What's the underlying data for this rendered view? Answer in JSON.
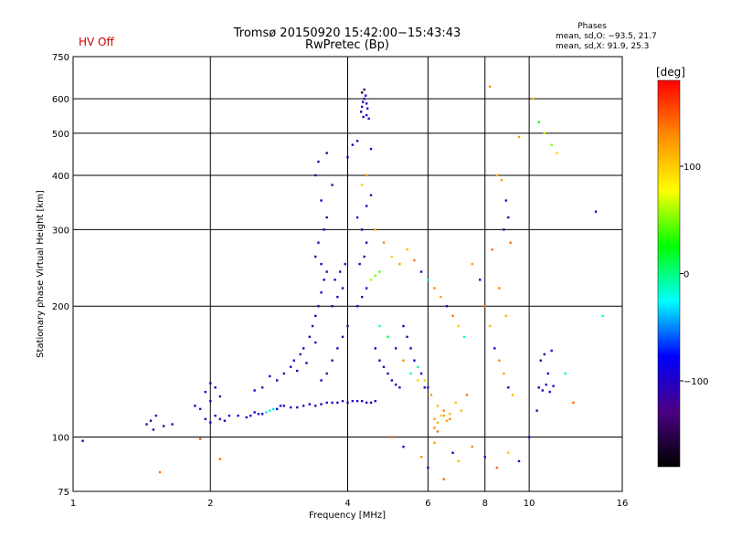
{
  "status": {
    "hv_text": "HV Off",
    "hv_color": "#cc0000"
  },
  "header": {
    "title_line1": "Tromsø 20150920 15:42:00−15:43:43",
    "title_line2": "RwPretec (Bp)"
  },
  "phases": {
    "heading": "Phases",
    "o_line": "mean, sd,O: −93.5, 21.7",
    "x_line": "mean, sd,X:  91.9, 25.3"
  },
  "colorbar": {
    "unit_label": "[deg]",
    "ticks": [
      {
        "value": 100,
        "label": "100"
      },
      {
        "value": 0,
        "label": "0"
      },
      {
        "value": -100,
        "label": "−100"
      }
    ],
    "range": [
      -180,
      180
    ],
    "stops": [
      "#000000",
      "#4b0082",
      "#0000ff",
      "#00ffff",
      "#00ff00",
      "#ffff00",
      "#ff8c00",
      "#ff0000"
    ]
  },
  "chart_data": {
    "type": "scatter",
    "xlabel": "Frequency [MHz]",
    "ylabel": "Stationary phase Virtual Height [km]",
    "x_scale": "log",
    "y_scale": "log",
    "xlim": [
      1,
      16
    ],
    "ylim": [
      75,
      750
    ],
    "x_ticks": [
      1,
      2,
      4,
      6,
      8,
      10,
      16
    ],
    "x_tick_labels": [
      "1",
      "2",
      "4",
      "6",
      "8",
      "10",
      "16"
    ],
    "y_ticks": [
      75,
      100,
      200,
      300,
      400,
      500,
      600,
      750
    ],
    "y_tick_labels": [
      "75",
      "100",
      "200",
      "300",
      "400",
      "500",
      "600",
      "750"
    ],
    "grid": true,
    "points": [
      [
        1.05,
        98,
        -100
      ],
      [
        1.45,
        107,
        -110
      ],
      [
        1.48,
        109,
        -110
      ],
      [
        1.5,
        104,
        -100
      ],
      [
        1.52,
        112,
        -105
      ],
      [
        1.58,
        106,
        -110
      ],
      [
        1.65,
        107,
        -100
      ],
      [
        1.55,
        83,
        140
      ],
      [
        1.9,
        99,
        150
      ],
      [
        2.1,
        89,
        140
      ],
      [
        1.85,
        118,
        -100
      ],
      [
        1.9,
        116,
        -105
      ],
      [
        1.95,
        110,
        -110
      ],
      [
        2.0,
        108,
        -100
      ],
      [
        2.0,
        121,
        -100
      ],
      [
        2.05,
        112,
        -110
      ],
      [
        2.1,
        110,
        -100
      ],
      [
        2.15,
        109,
        -105
      ],
      [
        2.2,
        112,
        -100
      ],
      [
        2.1,
        124,
        -110
      ],
      [
        2.05,
        130,
        -100
      ],
      [
        2.0,
        133,
        -105
      ],
      [
        1.95,
        127,
        -100
      ],
      [
        2.3,
        112,
        -110
      ],
      [
        2.4,
        111,
        -100
      ],
      [
        2.45,
        112,
        -100
      ],
      [
        2.5,
        114,
        -100
      ],
      [
        2.55,
        113,
        -105
      ],
      [
        2.6,
        113,
        -100
      ],
      [
        2.65,
        114,
        -30
      ],
      [
        2.7,
        115,
        -20
      ],
      [
        2.75,
        116,
        -30
      ],
      [
        2.8,
        116,
        -90
      ],
      [
        2.85,
        118,
        -100
      ],
      [
        2.9,
        118,
        -105
      ],
      [
        3.0,
        117,
        -110
      ],
      [
        2.5,
        128,
        -100
      ],
      [
        2.6,
        130,
        -110
      ],
      [
        2.7,
        138,
        -100
      ],
      [
        2.8,
        135,
        -105
      ],
      [
        2.9,
        140,
        -110
      ],
      [
        3.0,
        145,
        -100
      ],
      [
        3.05,
        150,
        -105
      ],
      [
        3.1,
        142,
        -100
      ],
      [
        3.15,
        155,
        -110
      ],
      [
        3.2,
        160,
        -100
      ],
      [
        3.25,
        148,
        -105
      ],
      [
        3.3,
        170,
        -110
      ],
      [
        3.35,
        180,
        -100
      ],
      [
        3.4,
        165,
        -105
      ],
      [
        3.1,
        117,
        -120
      ],
      [
        3.2,
        118,
        -110
      ],
      [
        3.3,
        119,
        -100
      ],
      [
        3.4,
        118,
        -110
      ],
      [
        3.5,
        119,
        -100
      ],
      [
        3.6,
        120,
        -110
      ],
      [
        3.7,
        120,
        -100
      ],
      [
        3.8,
        120,
        -105
      ],
      [
        3.9,
        121,
        -110
      ],
      [
        4.0,
        120,
        -100
      ],
      [
        4.1,
        121,
        -105
      ],
      [
        4.2,
        121,
        -100
      ],
      [
        4.3,
        121,
        -110
      ],
      [
        4.4,
        120,
        -100
      ],
      [
        4.5,
        120,
        -105
      ],
      [
        4.6,
        121,
        -100
      ],
      [
        3.4,
        190,
        -100
      ],
      [
        3.45,
        200,
        -110
      ],
      [
        3.5,
        215,
        -100
      ],
      [
        3.55,
        230,
        -105
      ],
      [
        3.6,
        240,
        -110
      ],
      [
        3.5,
        250,
        -100
      ],
      [
        3.4,
        260,
        -105
      ],
      [
        3.45,
        280,
        -110
      ],
      [
        3.55,
        300,
        -100
      ],
      [
        3.6,
        320,
        -105
      ],
      [
        3.5,
        350,
        -100
      ],
      [
        3.4,
        400,
        -110
      ],
      [
        3.45,
        430,
        -105
      ],
      [
        3.6,
        450,
        -100
      ],
      [
        3.7,
        380,
        -110
      ],
      [
        3.7,
        200,
        -100
      ],
      [
        3.8,
        210,
        -105
      ],
      [
        3.9,
        220,
        -110
      ],
      [
        3.75,
        230,
        -100
      ],
      [
        3.85,
        240,
        -105
      ],
      [
        3.95,
        250,
        -100
      ],
      [
        4.0,
        180,
        -110
      ],
      [
        3.9,
        170,
        -100
      ],
      [
        3.8,
        160,
        -105
      ],
      [
        3.7,
        150,
        -110
      ],
      [
        3.6,
        140,
        -100
      ],
      [
        3.5,
        135,
        -105
      ],
      [
        4.2,
        200,
        -100
      ],
      [
        4.3,
        210,
        -110
      ],
      [
        4.4,
        220,
        -105
      ],
      [
        4.5,
        230,
        60
      ],
      [
        4.6,
        235,
        50
      ],
      [
        4.7,
        240,
        40
      ],
      [
        4.25,
        250,
        -100
      ],
      [
        4.35,
        260,
        -105
      ],
      [
        4.4,
        280,
        -110
      ],
      [
        4.3,
        300,
        -100
      ],
      [
        4.2,
        320,
        -105
      ],
      [
        4.4,
        340,
        -100
      ],
      [
        4.5,
        360,
        -110
      ],
      [
        4.3,
        380,
        100
      ],
      [
        4.4,
        400,
        120
      ],
      [
        4.28,
        560,
        -100
      ],
      [
        4.3,
        575,
        -105
      ],
      [
        4.32,
        590,
        -110
      ],
      [
        4.35,
        600,
        -100
      ],
      [
        4.38,
        610,
        -105
      ],
      [
        4.4,
        585,
        -110
      ],
      [
        4.42,
        570,
        -100
      ],
      [
        4.3,
        620,
        -150
      ],
      [
        4.35,
        630,
        -140
      ],
      [
        4.4,
        550,
        -105
      ],
      [
        4.45,
        540,
        -100
      ],
      [
        4.33,
        545,
        -110
      ],
      [
        4.0,
        440,
        -100
      ],
      [
        4.1,
        470,
        -105
      ],
      [
        4.2,
        480,
        -110
      ],
      [
        4.5,
        460,
        -100
      ],
      [
        4.6,
        300,
        110
      ],
      [
        4.8,
        280,
        130
      ],
      [
        5.0,
        260,
        100
      ],
      [
        5.2,
        250,
        120
      ],
      [
        5.4,
        270,
        110
      ],
      [
        5.6,
        255,
        140
      ],
      [
        5.8,
        240,
        -100
      ],
      [
        6.0,
        230,
        -10
      ],
      [
        6.2,
        220,
        130
      ],
      [
        6.4,
        210,
        120
      ],
      [
        6.6,
        200,
        -100
      ],
      [
        6.8,
        190,
        140
      ],
      [
        7.0,
        180,
        100
      ],
      [
        7.2,
        170,
        -10
      ],
      [
        4.7,
        180,
        -10
      ],
      [
        4.9,
        170,
        10
      ],
      [
        5.1,
        160,
        -100
      ],
      [
        5.3,
        150,
        130
      ],
      [
        5.5,
        140,
        -10
      ],
      [
        5.7,
        135,
        100
      ],
      [
        5.9,
        130,
        -100
      ],
      [
        6.1,
        125,
        120
      ],
      [
        6.3,
        118,
        110
      ],
      [
        6.5,
        112,
        120
      ],
      [
        6.7,
        110,
        130
      ],
      [
        6.9,
        120,
        100
      ],
      [
        7.1,
        115,
        110
      ],
      [
        7.3,
        125,
        140
      ],
      [
        6.2,
        110,
        120
      ],
      [
        6.3,
        108,
        110
      ],
      [
        6.4,
        112,
        100
      ],
      [
        6.5,
        115,
        130
      ],
      [
        6.6,
        109,
        120
      ],
      [
        6.7,
        113,
        110
      ],
      [
        6.2,
        105,
        130
      ],
      [
        6.3,
        103,
        140
      ],
      [
        5.0,
        100,
        140
      ],
      [
        5.3,
        95,
        -100
      ],
      [
        5.8,
        90,
        130
      ],
      [
        6.0,
        85,
        -100
      ],
      [
        6.2,
        97,
        120
      ],
      [
        6.5,
        80,
        140
      ],
      [
        6.8,
        92,
        -100
      ],
      [
        7.0,
        88,
        110
      ],
      [
        7.5,
        95,
        130
      ],
      [
        8.0,
        90,
        -100
      ],
      [
        8.5,
        85,
        140
      ],
      [
        9.0,
        92,
        100
      ],
      [
        9.5,
        88,
        -100
      ],
      [
        7.5,
        250,
        120
      ],
      [
        7.8,
        230,
        -100
      ],
      [
        8.0,
        200,
        140
      ],
      [
        8.2,
        180,
        110
      ],
      [
        8.4,
        160,
        -100
      ],
      [
        8.6,
        150,
        130
      ],
      [
        8.8,
        140,
        120
      ],
      [
        9.0,
        130,
        -100
      ],
      [
        9.2,
        125,
        110
      ],
      [
        8.9,
        350,
        -110
      ],
      [
        9.0,
        320,
        -100
      ],
      [
        8.8,
        300,
        -105
      ],
      [
        9.1,
        280,
        140
      ],
      [
        8.2,
        640,
        130
      ],
      [
        8.5,
        400,
        110
      ],
      [
        8.7,
        390,
        120
      ],
      [
        8.3,
        270,
        140
      ],
      [
        8.6,
        220,
        130
      ],
      [
        8.9,
        190,
        110
      ],
      [
        10.5,
        130,
        -100
      ],
      [
        10.7,
        128,
        -105
      ],
      [
        10.9,
        132,
        -110
      ],
      [
        11.1,
        127,
        -100
      ],
      [
        11.3,
        131,
        -105
      ],
      [
        11.0,
        140,
        -100
      ],
      [
        10.8,
        155,
        -110
      ],
      [
        10.6,
        150,
        -100
      ],
      [
        11.2,
        158,
        -105
      ],
      [
        10.4,
        115,
        -100
      ],
      [
        10.0,
        100,
        -110
      ],
      [
        10.5,
        530,
        20
      ],
      [
        10.8,
        500,
        60
      ],
      [
        11.2,
        470,
        50
      ],
      [
        11.5,
        450,
        100
      ],
      [
        12.0,
        140,
        -10
      ],
      [
        12.5,
        120,
        140
      ],
      [
        14.0,
        330,
        -100
      ],
      [
        14.5,
        190,
        -10
      ],
      [
        10.2,
        600,
        110
      ],
      [
        9.5,
        490,
        120
      ],
      [
        5.5,
        160,
        -100
      ],
      [
        5.6,
        150,
        -105
      ],
      [
        5.7,
        145,
        -10
      ],
      [
        5.8,
        140,
        -100
      ],
      [
        5.9,
        135,
        100
      ],
      [
        6.0,
        130,
        -100
      ],
      [
        5.4,
        170,
        -110
      ],
      [
        5.3,
        180,
        -100
      ],
      [
        4.6,
        160,
        -100
      ],
      [
        4.7,
        150,
        -110
      ],
      [
        4.8,
        145,
        -100
      ],
      [
        4.9,
        140,
        -105
      ],
      [
        5.0,
        135,
        -110
      ],
      [
        5.1,
        132,
        -100
      ],
      [
        5.2,
        130,
        -105
      ]
    ]
  }
}
